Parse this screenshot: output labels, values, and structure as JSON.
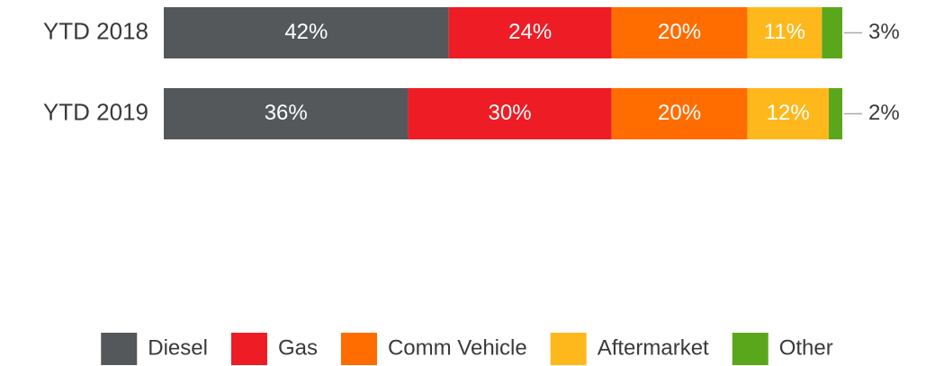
{
  "chart_data": {
    "type": "stacked_bar_horizontal",
    "categories": [
      "YTD 2018",
      "YTD 2019"
    ],
    "xlim": [
      0,
      100
    ],
    "legend": "bottom",
    "series": [
      {
        "name": "Diesel",
        "color": "#55585b",
        "values": [
          42,
          36
        ],
        "value_labels": [
          "42%",
          "36%"
        ]
      },
      {
        "name": "Gas",
        "color": "#ee1c25",
        "values": [
          24,
          30
        ],
        "value_labels": [
          "24%",
          "30%"
        ]
      },
      {
        "name": "Comm Vehicle",
        "color": "#ff6d00",
        "values": [
          20,
          20
        ],
        "value_labels": [
          "20%",
          "20%"
        ]
      },
      {
        "name": "Aftermarket",
        "color": "#ffb81c",
        "values": [
          11,
          12
        ],
        "value_labels": [
          "11%",
          "12%"
        ]
      },
      {
        "name": "Other",
        "color": "#5ba71b",
        "values": [
          3,
          2
        ],
        "value_labels": [
          "3%",
          "2%"
        ]
      }
    ]
  }
}
